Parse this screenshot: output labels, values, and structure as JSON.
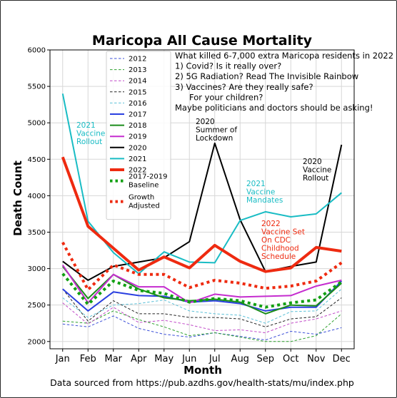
{
  "chart_data": {
    "type": "line",
    "title": "Maricopa All Cause Mortality",
    "xlabel": "Month",
    "ylabel": "Death Count",
    "categories": [
      "Jan",
      "Feb",
      "Mar",
      "Apr",
      "May",
      "Jun",
      "Jul",
      "Aug",
      "Sep",
      "Oct",
      "Nov",
      "Dec"
    ],
    "ylim": [
      1900,
      6000
    ],
    "yticks": [
      2000,
      2500,
      3000,
      3500,
      4000,
      4500,
      5000,
      5500,
      6000
    ],
    "grid": true,
    "legend_position": "top-left",
    "series": [
      {
        "name": "2012",
        "color": "#3b4fd8",
        "style": "dashed",
        "width": 1,
        "values": [
          2240,
          2200,
          2350,
          2180,
          2100,
          2060,
          2120,
          2070,
          2020,
          2140,
          2100,
          2190
        ]
      },
      {
        "name": "2013",
        "color": "#2ca02c",
        "style": "dashed",
        "width": 1,
        "values": [
          2280,
          2250,
          2420,
          2300,
          2200,
          2080,
          2120,
          2060,
          2000,
          2000,
          2080,
          2380
        ]
      },
      {
        "name": "2014",
        "color": "#c048c8",
        "style": "dashed",
        "width": 1,
        "values": [
          2530,
          2240,
          2470,
          2260,
          2290,
          2230,
          2150,
          2160,
          2120,
          2250,
          2310,
          2420
        ]
      },
      {
        "name": "2015",
        "color": "#222222",
        "style": "dashed",
        "width": 1,
        "values": [
          2720,
          2280,
          2560,
          2380,
          2380,
          2330,
          2330,
          2310,
          2200,
          2310,
          2340,
          2600
        ]
      },
      {
        "name": "2016",
        "color": "#5bc0d8",
        "style": "dashed",
        "width": 1,
        "values": [
          2600,
          2330,
          2500,
          2520,
          2570,
          2420,
          2380,
          2360,
          2250,
          2410,
          2420,
          2720
        ]
      },
      {
        "name": "2017",
        "color": "#2a3fe0",
        "style": "solid",
        "width": 2,
        "values": [
          2720,
          2420,
          2680,
          2630,
          2620,
          2540,
          2560,
          2520,
          2420,
          2470,
          2470,
          2830
        ]
      },
      {
        "name": "2018",
        "color": "#1a8c1a",
        "style": "solid",
        "width": 2,
        "values": [
          3030,
          2590,
          2920,
          2720,
          2600,
          2560,
          2580,
          2540,
          2380,
          2500,
          2490,
          2800
        ]
      },
      {
        "name": "2019",
        "color": "#c52ccf",
        "style": "solid",
        "width": 2,
        "values": [
          3050,
          2530,
          2920,
          2750,
          2750,
          2530,
          2650,
          2610,
          2620,
          2630,
          2760,
          2840
        ]
      },
      {
        "name": "2020",
        "color": "#000000",
        "style": "solid",
        "width": 2,
        "values": [
          3100,
          2840,
          3030,
          3090,
          3150,
          3370,
          4720,
          3670,
          2960,
          3030,
          3090,
          4700
        ]
      },
      {
        "name": "2021",
        "color": "#19bcc4",
        "style": "solid",
        "width": 2,
        "values": [
          5400,
          3650,
          3220,
          2930,
          3230,
          3090,
          3080,
          3660,
          3780,
          3710,
          3750,
          4040
        ]
      },
      {
        "name": "2022",
        "color": "#ee2a10",
        "style": "solid",
        "width": 4,
        "values": [
          4530,
          3580,
          3280,
          2980,
          3160,
          3010,
          3320,
          3100,
          2960,
          3010,
          3290,
          3240
        ]
      },
      {
        "name": "2017-2019 Baseline",
        "color": "#12a012",
        "style": "dotted",
        "width": 4,
        "values": [
          2930,
          2510,
          2830,
          2700,
          2660,
          2540,
          2590,
          2560,
          2470,
          2530,
          2570,
          2820
        ]
      },
      {
        "name": "Growth Adjusted",
        "color": "#ee2a10",
        "style": "dotted",
        "width": 4,
        "values": [
          3360,
          2710,
          3050,
          2920,
          2920,
          2740,
          2840,
          2800,
          2730,
          2760,
          2830,
          3080
        ]
      }
    ],
    "annotations": [
      {
        "text": [
          "2021",
          "Vaccine",
          "Rollout"
        ],
        "color": "#19bcc4"
      },
      {
        "text": [
          "2020",
          "Summer of",
          "Lockdown"
        ],
        "color": "#000000"
      },
      {
        "text": [
          "2020",
          "Vaccine",
          "Rollout"
        ],
        "color": "#000000"
      },
      {
        "text": [
          "2021",
          "Vaccine",
          "Mandates"
        ],
        "color": "#19bcc4"
      },
      {
        "text": [
          "2022",
          "Vaccine Set",
          "On CDC",
          "Childhood",
          "Schedule"
        ],
        "color": "#ee2a10"
      }
    ],
    "note_lines": [
      "What killed 6-7,000 extra Maricopa residents in 2022",
      "1) Covid? Is it really over?",
      "2) 5G Radiation? Read The Invisible Rainbow",
      "3) Vaccines? Are they really safe?",
      "For your children?",
      "Maybe politicians and doctors should be asking!"
    ]
  },
  "source_text": "Data sourced from https://pub.azdhs.gov/health-stats/mu/index.php"
}
